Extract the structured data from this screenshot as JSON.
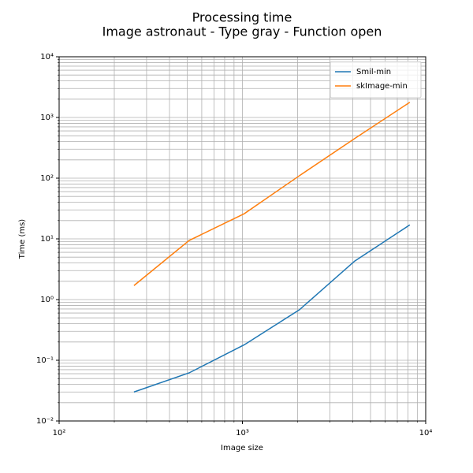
{
  "chart_data": {
    "type": "line",
    "title": "Processing time",
    "subtitle": "Image astronaut - Type gray - Function open",
    "x_label": "Image size",
    "y_label": "Time (ms)",
    "x": [
      256,
      512,
      1024,
      2048,
      4096,
      8192
    ],
    "series": [
      {
        "name": "Smil-min",
        "color": "#1f77b4",
        "values": [
          0.03,
          0.062,
          0.18,
          0.68,
          4.3,
          17
        ]
      },
      {
        "name": "skImage-min",
        "color": "#ff7f0e",
        "values": [
          1.7,
          9.4,
          26,
          110,
          450,
          1780
        ]
      }
    ],
    "log_x": true,
    "log_y": true,
    "xlim": [
      100,
      10000
    ],
    "xticks": [
      {
        "value": 100,
        "label": "10²"
      },
      {
        "value": 1000,
        "label": "10³"
      },
      {
        "value": 10000,
        "label": "10⁴"
      }
    ],
    "ylim": [
      0.01,
      10000
    ],
    "yticks": [
      {
        "value": 0.01,
        "label": "10⁻²"
      },
      {
        "value": 0.1,
        "label": "10⁻¹"
      },
      {
        "value": 1,
        "label": "10⁰"
      },
      {
        "value": 10,
        "label": "10¹"
      },
      {
        "value": 100,
        "label": "10²"
      },
      {
        "value": 1000,
        "label": "10³"
      },
      {
        "value": 10000,
        "label": "10⁴"
      }
    ],
    "grid": true,
    "minor_grid": true,
    "legend": "upper right"
  }
}
